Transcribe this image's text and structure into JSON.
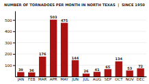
{
  "chart_data": {
    "type": "bar",
    "title": "NUMBER OF TORNADOES PER MONTH IN NORTH TEXAS  |  SINCE 1950",
    "categories": [
      "JAN",
      "FEB",
      "MAR",
      "APR",
      "MAY",
      "JUN",
      "JUL",
      "AUG",
      "SEP",
      "OCT",
      "NOV",
      "DEC"
    ],
    "values": [
      39,
      36,
      176,
      503,
      475,
      144,
      26,
      41,
      65,
      134,
      53,
      72
    ],
    "color": "#aa1111",
    "ylim": [
      0,
      580
    ],
    "yticks": [
      100,
      200,
      300,
      400,
      500
    ],
    "grid": true,
    "data_labels": true
  }
}
